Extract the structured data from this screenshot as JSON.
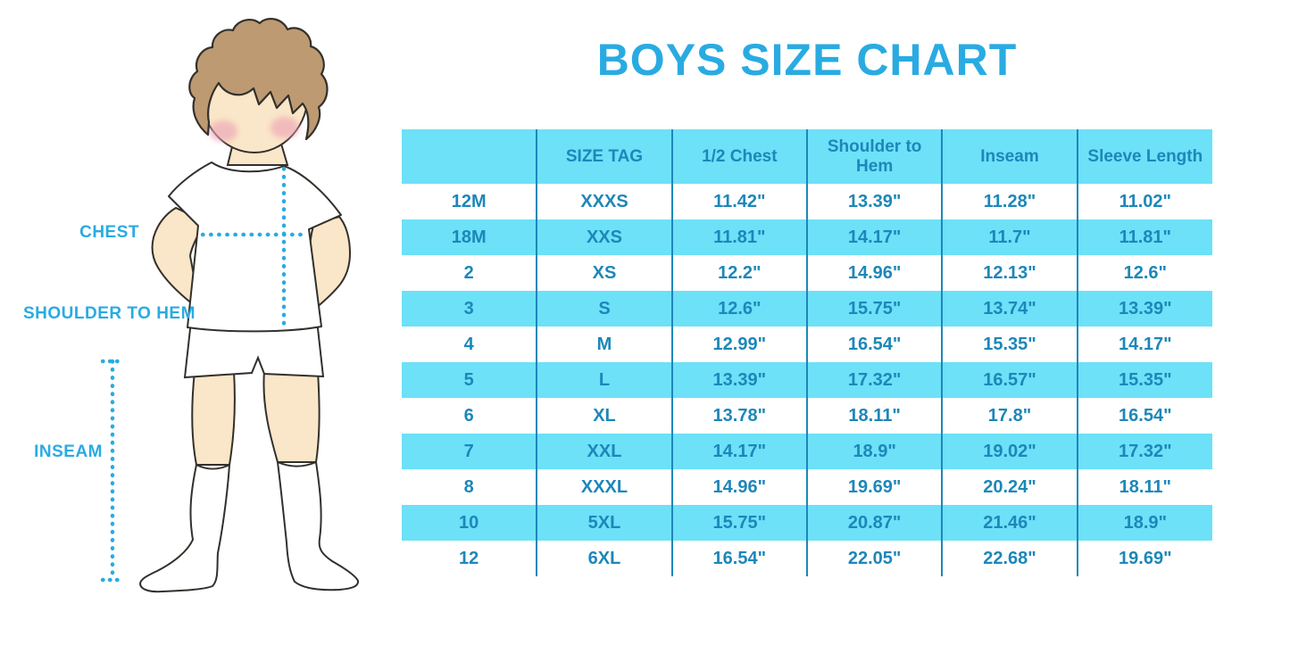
{
  "title": "BOYS SIZE CHART",
  "colors": {
    "accent_blue": "#29abe2",
    "table_text_blue": "#1d87b9",
    "row_cyan": "#6ce1f8",
    "row_white": "#ffffff",
    "skin": "#fae6c8",
    "hair_brown": "#bd9a71",
    "blush_pink": "#eda4b6",
    "outline": "#33302c"
  },
  "figure": {
    "labels": {
      "chest": "CHEST",
      "shoulder_to_hem": "SHOULDER TO HEM",
      "inseam": "INSEAM"
    }
  },
  "chart_data": {
    "type": "table",
    "title": "BOYS SIZE CHART",
    "columns": [
      "",
      "SIZE TAG",
      "1/2 Chest",
      "Shoulder to Hem",
      "Inseam",
      "Sleeve Length"
    ],
    "rows": [
      [
        "12M",
        "XXXS",
        "11.42\"",
        "13.39\"",
        "11.28\"",
        "11.02\""
      ],
      [
        "18M",
        "XXS",
        "11.81\"",
        "14.17\"",
        "11.7\"",
        "11.81\""
      ],
      [
        "2",
        "XS",
        "12.2\"",
        "14.96\"",
        "12.13\"",
        "12.6\""
      ],
      [
        "3",
        "S",
        "12.6\"",
        "15.75\"",
        "13.74\"",
        "13.39\""
      ],
      [
        "4",
        "M",
        "12.99\"",
        "16.54\"",
        "15.35\"",
        "14.17\""
      ],
      [
        "5",
        "L",
        "13.39\"",
        "17.32\"",
        "16.57\"",
        "15.35\""
      ],
      [
        "6",
        "XL",
        "13.78\"",
        "18.11\"",
        "17.8\"",
        "16.54\""
      ],
      [
        "7",
        "XXL",
        "14.17\"",
        "18.9\"",
        "19.02\"",
        "17.32\""
      ],
      [
        "8",
        "XXXL",
        "14.96\"",
        "19.69\"",
        "20.24\"",
        "18.11\""
      ],
      [
        "10",
        "5XL",
        "15.75\"",
        "20.87\"",
        "21.46\"",
        "18.9\""
      ],
      [
        "12",
        "6XL",
        "16.54\"",
        "22.05\"",
        "22.68\"",
        "19.69\""
      ]
    ],
    "row_striping": "alternating white / cyan, first data row white",
    "units": "inches"
  }
}
